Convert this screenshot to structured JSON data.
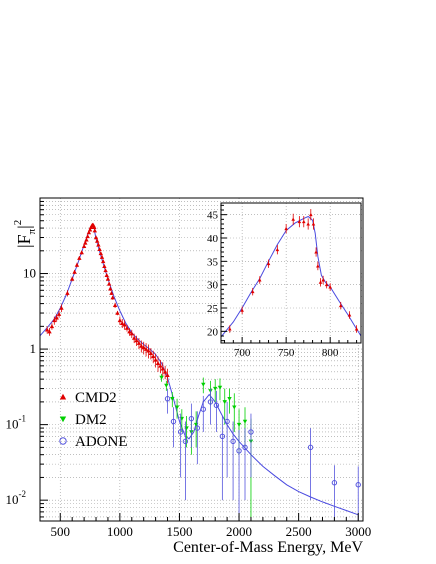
{
  "chart_data": [
    {
      "type": "scatter",
      "title": "",
      "xlabel": "Center-of-Mass Energy, MeV",
      "ylabel": "|F_π|²",
      "ylabel_main": "|F",
      "ylabel_sub": "π",
      "ylabel_sup": "2",
      "yscale": "log",
      "xlim": [
        330,
        3040
      ],
      "ylim": [
        0.0053,
        100
      ],
      "grid": true,
      "legend_position": "lower-left",
      "x_ticks": [
        500,
        1000,
        1500,
        2000,
        2500,
        3000
      ],
      "x_tick_labels": [
        "500",
        "1000",
        "1500",
        "2000",
        "2500",
        "3000"
      ],
      "y_ticks": [
        10,
        1,
        0.1,
        0.01
      ],
      "y_tick_labels": [
        {
          "base": "10",
          "exp": ""
        },
        {
          "base": "1",
          "exp": ""
        },
        {
          "base": "10",
          "exp": "-1"
        },
        {
          "base": "10",
          "exp": "-2"
        }
      ],
      "series": [
        {
          "name": "CMD2",
          "marker": "triangle-up",
          "color": "#e00000",
          "x": [
            390,
            410,
            430,
            450,
            470,
            490,
            510,
            560,
            600,
            620,
            640,
            660,
            680,
            700,
            710,
            720,
            730,
            740,
            750,
            758,
            765,
            770,
            775,
            780,
            785,
            790,
            800,
            810,
            820,
            830,
            840,
            850,
            860,
            870,
            880,
            890,
            900,
            910,
            920,
            930,
            940,
            960,
            980,
            1000,
            1020,
            1040,
            1060,
            1080,
            1100,
            1120,
            1140,
            1160,
            1180,
            1200,
            1220,
            1240,
            1260,
            1280,
            1300,
            1320,
            1340,
            1360,
            1380,
            1400
          ],
          "y": [
            1.8,
            1.7,
            2.0,
            2.4,
            2.6,
            2.9,
            3.5,
            5.5,
            8.5,
            10.5,
            13,
            16,
            19,
            23,
            25.5,
            28,
            31,
            35,
            38,
            41,
            43,
            44,
            44,
            43,
            41,
            37,
            30,
            27,
            24,
            21,
            18.5,
            16.5,
            14.5,
            12.5,
            11,
            9.5,
            8.5,
            7.3,
            6.3,
            5.5,
            4.8,
            3.8,
            3.0,
            2.4,
            2.2,
            2.1,
            1.9,
            1.7,
            1.6,
            1.4,
            1.3,
            1.2,
            1.1,
            1.05,
            1.0,
            0.95,
            0.88,
            0.8,
            0.72,
            0.65,
            0.6,
            0.55,
            0.5,
            0.45
          ],
          "yerr": [
            0.2,
            0.2,
            0.2,
            0.3,
            0.3,
            0.3,
            0.4,
            0.5,
            0.6,
            0.7,
            0.9,
            1.0,
            1.2,
            1.3,
            1.4,
            1.5,
            1.6,
            1.8,
            2.0,
            2.0,
            2.0,
            2.0,
            2.0,
            2.0,
            2.0,
            2.0,
            1.5,
            1.4,
            1.2,
            1.1,
            1.0,
            0.9,
            0.8,
            0.7,
            0.6,
            0.5,
            0.5,
            0.4,
            0.4,
            0.3,
            0.3,
            0.3,
            0.2,
            0.3,
            0.3,
            0.3,
            0.2,
            0.2,
            0.2,
            0.2,
            0.2,
            0.2,
            0.2,
            0.2,
            0.2,
            0.2,
            0.15,
            0.15,
            0.15,
            0.15,
            0.12,
            0.12,
            0.1,
            0.1
          ]
        },
        {
          "name": "DM2",
          "marker": "triangle-down",
          "color": "#00d000",
          "x": [
            1350,
            1390,
            1440,
            1480,
            1520,
            1560,
            1600,
            1640,
            1700,
            1760,
            1800,
            1840,
            1880,
            1920,
            1960,
            2000,
            2050,
            2100
          ],
          "y": [
            0.42,
            0.33,
            0.22,
            0.17,
            0.12,
            0.09,
            0.08,
            0.1,
            0.34,
            0.28,
            0.3,
            0.31,
            0.2,
            0.22,
            0.17,
            0.1,
            0.11,
            0.06
          ],
          "yerr": [
            0.05,
            0.05,
            0.05,
            0.05,
            0.04,
            0.04,
            0.04,
            0.05,
            0.08,
            0.1,
            0.1,
            0.1,
            0.1,
            0.08,
            0.09,
            0.06,
            0.06,
            0.06
          ]
        },
        {
          "name": "ADONE",
          "marker": "circle-open",
          "color": "#5555dd",
          "x": [
            1400,
            1450,
            1510,
            1550,
            1600,
            1650,
            1700,
            1760,
            1810,
            1860,
            1900,
            1950,
            2000,
            2050,
            2100,
            2600,
            2800,
            3000
          ],
          "y": [
            0.22,
            0.11,
            0.08,
            0.06,
            0.12,
            0.09,
            0.16,
            0.2,
            0.18,
            0.07,
            0.11,
            0.06,
            0.045,
            0.05,
            0.08,
            0.05,
            0.017,
            0.016
          ],
          "yerr": [
            0.08,
            0.06,
            0.06,
            0.05,
            0.07,
            0.06,
            0.08,
            0.1,
            0.1,
            0.06,
            0.09,
            0.05,
            0.04,
            0.04,
            0.06,
            0.04,
            0.012,
            0.012
          ]
        }
      ],
      "fit_curve": {
        "color": "#4a4ae0",
        "x": [
          330,
          400,
          450,
          500,
          550,
          600,
          650,
          700,
          730,
          750,
          765,
          775,
          782,
          790,
          800,
          830,
          870,
          900,
          950,
          1000,
          1050,
          1100,
          1150,
          1200,
          1250,
          1300,
          1350,
          1400,
          1450,
          1500,
          1550,
          1580,
          1620,
          1660,
          1700,
          1750,
          1800,
          1850,
          1900,
          1950,
          2000,
          2100,
          2200,
          2300,
          2400,
          2500,
          2600,
          2700,
          2800,
          2900,
          3000
        ],
        "y": [
          1.5,
          2.0,
          2.5,
          3.5,
          5.2,
          8.5,
          14,
          24,
          33,
          40,
          44,
          44.5,
          43,
          35,
          29,
          19.5,
          12,
          8.5,
          5.0,
          3.2,
          2.2,
          1.65,
          1.35,
          1.15,
          1.0,
          0.85,
          0.65,
          0.42,
          0.22,
          0.11,
          0.07,
          0.065,
          0.08,
          0.13,
          0.2,
          0.25,
          0.2,
          0.14,
          0.1,
          0.075,
          0.06,
          0.04,
          0.028,
          0.021,
          0.016,
          0.013,
          0.011,
          0.0095,
          0.0083,
          0.0073,
          0.0064
        ]
      }
    },
    {
      "type": "scatter",
      "title": "",
      "xlabel": "",
      "ylabel": "",
      "xlim": [
        676,
        835
      ],
      "ylim": [
        17.5,
        47.5
      ],
      "grid": true,
      "x_ticks": [
        700,
        750,
        800
      ],
      "y_ticks": [
        20,
        25,
        30,
        35,
        40,
        45
      ],
      "series": [
        {
          "name": "CMD2",
          "marker": "triangle-up",
          "color": "#e00000",
          "x": [
            686,
            700,
            712,
            720,
            730,
            740,
            750,
            758,
            765,
            770,
            775,
            778,
            781,
            784,
            786,
            789,
            792,
            796,
            800,
            812,
            822,
            830
          ],
          "y": [
            20.5,
            24.5,
            28.5,
            31,
            34.5,
            37.5,
            42,
            44,
            43.5,
            43.5,
            43,
            45,
            43,
            37,
            34,
            30.5,
            31,
            30,
            29.5,
            25.5,
            23.5,
            20.5
          ],
          "yerr": [
            0.8,
            0.8,
            0.8,
            0.8,
            0.9,
            1.0,
            1.0,
            1.2,
            1.2,
            1.2,
            1.2,
            1.2,
            1.2,
            1.0,
            0.9,
            0.9,
            0.9,
            0.8,
            0.8,
            0.8,
            0.8,
            0.8
          ]
        }
      ],
      "fit_curve": {
        "color": "#4a4ae0",
        "x": [
          676,
          690,
          700,
          710,
          720,
          730,
          740,
          750,
          760,
          770,
          775,
          780,
          783,
          786,
          790,
          795,
          800,
          810,
          820,
          830,
          835
        ],
        "y": [
          18.8,
          22,
          25,
          28.3,
          31.3,
          35,
          38.6,
          41.6,
          43.2,
          44.2,
          44.6,
          43.8,
          41,
          36,
          32,
          30.4,
          29.5,
          26.5,
          23.6,
          20.5,
          19
        ]
      }
    }
  ],
  "colors": {
    "grid": "#999999",
    "axis": "#000000"
  }
}
